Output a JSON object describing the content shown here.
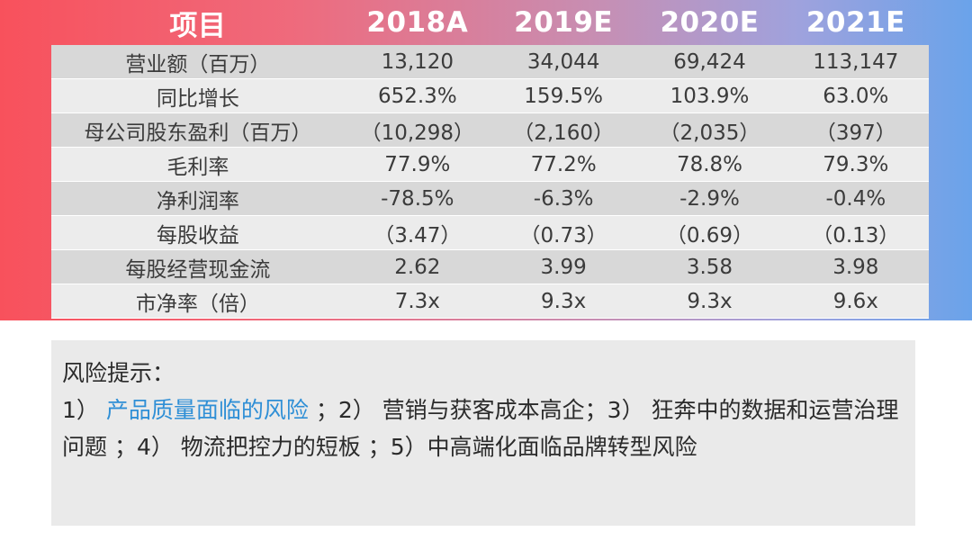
{
  "table": {
    "headers": [
      "项目",
      "2018A",
      "2019E",
      "2020E",
      "2021E"
    ],
    "rows": [
      {
        "label": "营业额（百万）",
        "values": [
          "13,120",
          "34,044",
          "69,424",
          "113,147"
        ]
      },
      {
        "label": "同比增长",
        "values": [
          "652.3%",
          "159.5%",
          "103.9%",
          "63.0%"
        ]
      },
      {
        "label": "母公司股东盈利（百万）",
        "values": [
          "（10,298）",
          "（2,160）",
          "（2,035）",
          "（397）"
        ]
      },
      {
        "label": "毛利率",
        "values": [
          "77.9%",
          "77.2%",
          "78.8%",
          "79.3%"
        ]
      },
      {
        "label": "净利润率",
        "values": [
          "-78.5%",
          "-6.3%",
          "-2.9%",
          "-0.4%"
        ]
      },
      {
        "label": "每股收益",
        "values": [
          "（3.47）",
          "（0.73）",
          "（0.69）",
          "（0.13）"
        ]
      },
      {
        "label": "每股经营现金流",
        "values": [
          "2.62",
          "3.99",
          "3.58",
          "3.98"
        ]
      },
      {
        "label": "市净率（倍）",
        "values": [
          "7.3x",
          "9.3x",
          "9.3x",
          "9.6x"
        ]
      }
    ]
  },
  "risk": {
    "title": "风险提示：",
    "p1": "1）",
    "p1_highlight": "产品质量面临的风险",
    "rest": "；2） 营销与获客成本高企；3） 狂奔中的数据和运营治理问题 ；4） 物流把控力的短板 ；5）中高端化面临品牌转型风险"
  },
  "colors": {
    "highlight": "#2f8fd6",
    "row_dark": "#d8d8d8",
    "row_light": "#ececec"
  }
}
